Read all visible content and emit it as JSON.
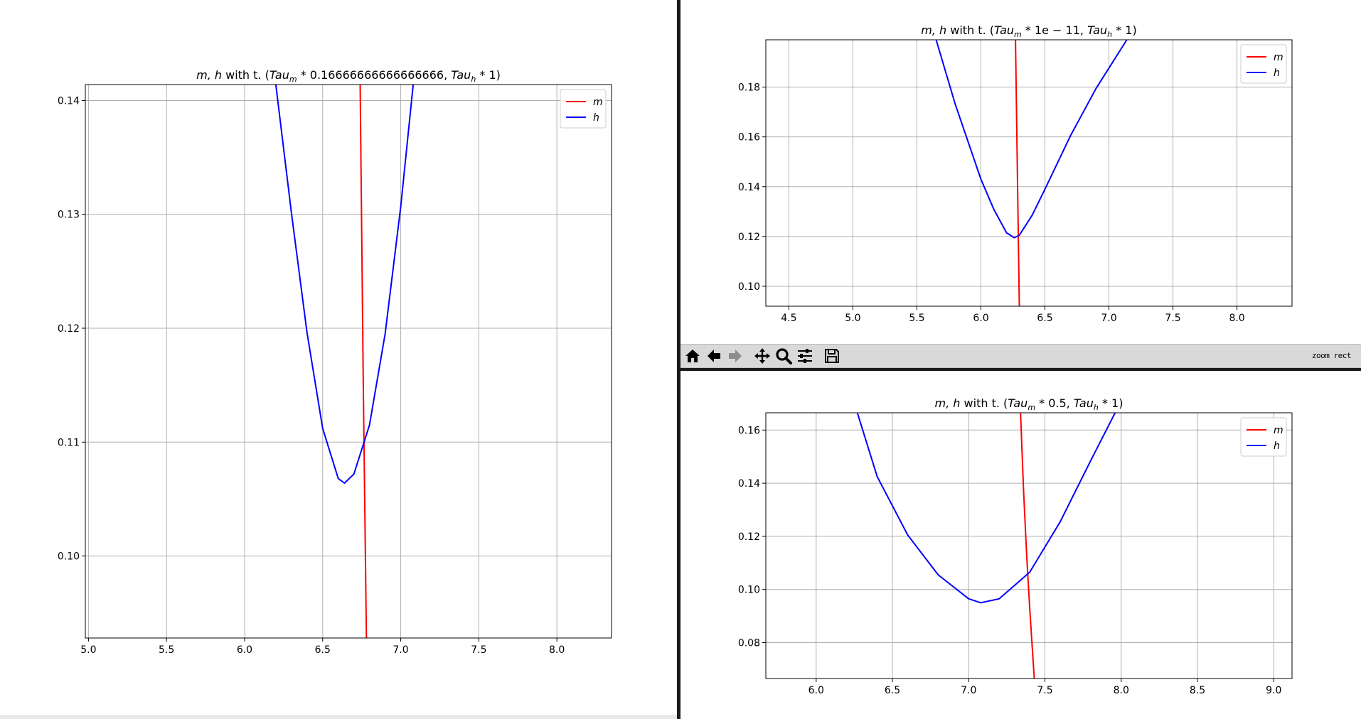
{
  "colors": {
    "m": "#ff0000",
    "h": "#0000ff",
    "grid": "#b0b0b0"
  },
  "toolbar": {
    "buttons": [
      {
        "icon": "home-icon",
        "name": "home-button"
      },
      {
        "icon": "arrow-left-icon",
        "name": "back-button"
      },
      {
        "icon": "arrow-right-icon",
        "name": "forward-button"
      },
      {
        "icon": "pan-icon",
        "name": "pan-button"
      },
      {
        "icon": "zoom-icon",
        "name": "zoom-button"
      },
      {
        "icon": "sliders-icon",
        "name": "configure-subplots-button"
      },
      {
        "icon": "floppy-disk-icon",
        "name": "save-button"
      }
    ],
    "mode_text": "zoom rect"
  },
  "chart_data": [
    {
      "type": "line",
      "title_prefix": "m, h",
      "title_mid": " with t. (",
      "title_sym1": "Tau",
      "title_sub1": "m",
      "title_val1": " * 0.16666666666666666, ",
      "title_sym2": "Tau",
      "title_sub2": "h",
      "title_val2": " * 1)",
      "xlim": [
        4.98,
        8.35
      ],
      "ylim": [
        0.0928,
        0.1414
      ],
      "xticks": [
        5.0,
        5.5,
        6.0,
        6.5,
        7.0,
        7.5,
        8.0
      ],
      "yticks": [
        0.1,
        0.11,
        0.12,
        0.13,
        0.14
      ],
      "grid": true,
      "legend": "top-right",
      "series": [
        {
          "name": "m",
          "x": [
            6.74,
            6.76,
            6.78
          ],
          "y": [
            0.1414,
            0.115,
            0.0928
          ]
        },
        {
          "name": "h",
          "x": [
            6.2,
            6.3,
            6.4,
            6.5,
            6.6,
            6.64,
            6.7,
            6.8,
            6.9,
            7.0,
            7.08
          ],
          "y": [
            0.1414,
            0.1301,
            0.1196,
            0.1112,
            0.1068,
            0.1064,
            0.1072,
            0.1115,
            0.1195,
            0.1307,
            0.1414
          ]
        }
      ]
    },
    {
      "type": "line",
      "title_prefix": "m, h",
      "title_mid": " with t. (",
      "title_sym1": "Tau",
      "title_sub1": "m",
      "title_val1": " * 1e − 11, ",
      "title_sym2": "Tau",
      "title_sub2": "h",
      "title_val2": " * 1)",
      "xlim": [
        4.32,
        8.43
      ],
      "ylim": [
        0.092,
        0.199
      ],
      "xticks": [
        4.5,
        5.0,
        5.5,
        6.0,
        6.5,
        7.0,
        7.5,
        8.0
      ],
      "yticks": [
        0.1,
        0.12,
        0.14,
        0.16,
        0.18
      ],
      "grid": true,
      "legend": "top-right",
      "series": [
        {
          "name": "m",
          "x": [
            6.27,
            6.285,
            6.3
          ],
          "y": [
            0.199,
            0.145,
            0.092
          ]
        },
        {
          "name": "h",
          "x": [
            5.65,
            5.8,
            6.0,
            6.1,
            6.2,
            6.26,
            6.3,
            6.4,
            6.5,
            6.7,
            6.9,
            7.14
          ],
          "y": [
            0.199,
            0.173,
            0.143,
            0.131,
            0.1215,
            0.1195,
            0.1205,
            0.1285,
            0.139,
            0.1605,
            0.1795,
            0.199
          ]
        }
      ]
    },
    {
      "type": "line",
      "title_prefix": "m, h",
      "title_mid": " with t. (",
      "title_sym1": "Tau",
      "title_sub1": "m",
      "title_val1": " * 0.5, ",
      "title_sym2": "Tau",
      "title_sub2": "h",
      "title_val2": " * 1)",
      "xlim": [
        5.67,
        9.12
      ],
      "ylim": [
        0.0665,
        0.1665
      ],
      "xticks": [
        6.0,
        6.5,
        7.0,
        7.5,
        8.0,
        8.5,
        9.0
      ],
      "yticks": [
        0.08,
        0.1,
        0.12,
        0.14,
        0.16
      ],
      "grid": true,
      "legend": "top-right",
      "series": [
        {
          "name": "m",
          "x": [
            7.34,
            7.36,
            7.38,
            7.4,
            7.43
          ],
          "y": [
            0.1665,
            0.137,
            0.113,
            0.093,
            0.0665
          ]
        },
        {
          "name": "h",
          "x": [
            6.27,
            6.4,
            6.6,
            6.8,
            7.0,
            7.08,
            7.2,
            7.4,
            7.6,
            7.8,
            7.96
          ],
          "y": [
            0.1665,
            0.1425,
            0.1205,
            0.1055,
            0.0965,
            0.095,
            0.0965,
            0.1065,
            0.1255,
            0.1485,
            0.1665
          ]
        }
      ]
    }
  ]
}
